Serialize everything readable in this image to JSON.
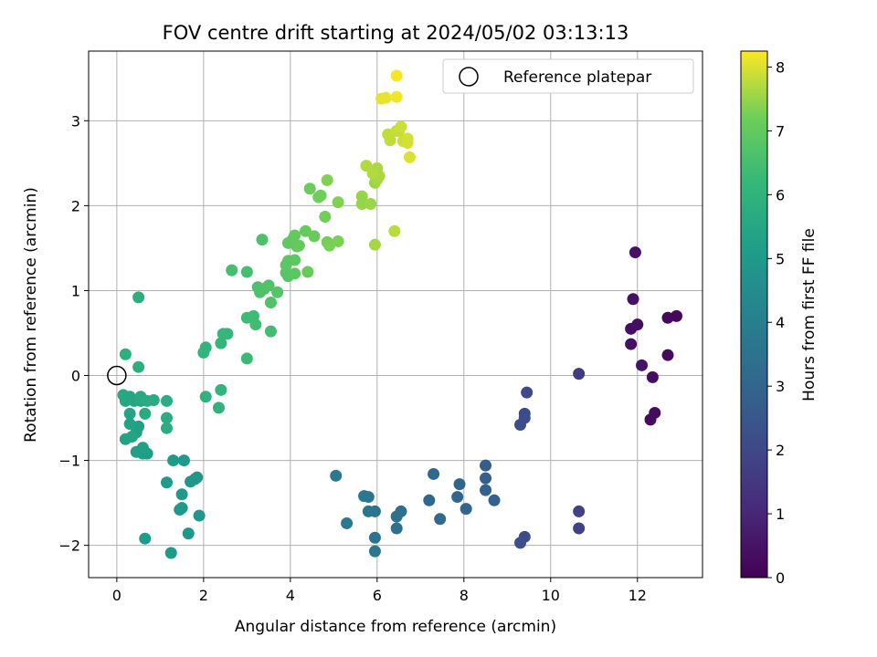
{
  "chart_data": {
    "type": "scatter",
    "title": "FOV centre drift starting at 2024/05/02 03:13:13",
    "xlabel": "Angular distance from reference (arcmin)",
    "ylabel": "Rotation from reference (arcmin)",
    "xlim": [
      -0.65,
      13.5
    ],
    "ylim": [
      -2.38,
      3.82
    ],
    "xticks": [
      0,
      2,
      4,
      6,
      8,
      10,
      12
    ],
    "yticks": [
      -2,
      -1,
      0,
      1,
      2,
      3
    ],
    "grid": true,
    "legend": {
      "position": "top-right",
      "entries": [
        "Reference platepar"
      ]
    },
    "reference_point": {
      "x": 0,
      "y": 0
    },
    "colorbar": {
      "label": "Hours from first FF file",
      "min": 0,
      "max": 8.25,
      "ticks": [
        0,
        1,
        2,
        3,
        4,
        5,
        6,
        7,
        8
      ],
      "colormap": "viridis"
    },
    "points": [
      [
        12.7,
        0.68,
        0.2
      ],
      [
        12.9,
        0.7,
        0.2
      ],
      [
        12.7,
        0.24,
        0.3
      ],
      [
        12.4,
        -0.44,
        0.3
      ],
      [
        12.3,
        -0.52,
        0.3
      ],
      [
        12.35,
        -0.02,
        0.35
      ],
      [
        12.0,
        0.6,
        0.35
      ],
      [
        11.85,
        0.55,
        0.4
      ],
      [
        11.85,
        0.37,
        0.4
      ],
      [
        11.9,
        0.9,
        0.45
      ],
      [
        11.95,
        1.45,
        0.45
      ],
      [
        12.1,
        0.12,
        0.5
      ],
      [
        10.65,
        0.02,
        1.6
      ],
      [
        10.65,
        -1.6,
        1.75
      ],
      [
        10.65,
        -1.8,
        1.8
      ],
      [
        9.45,
        -0.2,
        2.05
      ],
      [
        9.4,
        -0.45,
        2.1
      ],
      [
        9.4,
        -0.5,
        2.15
      ],
      [
        9.3,
        -0.58,
        2.2
      ],
      [
        9.4,
        -1.9,
        2.2
      ],
      [
        9.3,
        -1.97,
        2.25
      ],
      [
        8.5,
        -1.06,
        2.75
      ],
      [
        8.5,
        -1.21,
        2.8
      ],
      [
        8.5,
        -1.35,
        2.85
      ],
      [
        8.7,
        -1.47,
        2.85
      ],
      [
        8.05,
        -1.57,
        2.95
      ],
      [
        7.9,
        -1.28,
        3.0
      ],
      [
        7.85,
        -1.43,
        3.0
      ],
      [
        7.3,
        -1.16,
        3.1
      ],
      [
        7.2,
        -1.47,
        3.15
      ],
      [
        7.45,
        -1.69,
        3.2
      ],
      [
        6.55,
        -1.6,
        3.35
      ],
      [
        6.45,
        -1.66,
        3.4
      ],
      [
        6.45,
        -1.8,
        3.4
      ],
      [
        5.95,
        -1.6,
        3.55
      ],
      [
        5.95,
        -1.91,
        3.55
      ],
      [
        5.95,
        -2.07,
        3.6
      ],
      [
        5.8,
        -1.6,
        3.6
      ],
      [
        5.8,
        -1.43,
        3.65
      ],
      [
        5.7,
        -1.42,
        3.7
      ],
      [
        5.3,
        -1.74,
        3.75
      ],
      [
        5.05,
        -1.18,
        3.8
      ],
      [
        1.85,
        -1.2,
        4.8
      ],
      [
        1.8,
        -1.22,
        4.85
      ],
      [
        1.7,
        -1.25,
        4.85
      ],
      [
        1.9,
        -1.65,
        4.9
      ],
      [
        1.65,
        -1.86,
        4.9
      ],
      [
        1.5,
        -1.56,
        4.95
      ],
      [
        1.45,
        -1.58,
        4.95
      ],
      [
        1.5,
        -1.4,
        5.0
      ],
      [
        1.55,
        -1.0,
        5.0
      ],
      [
        1.3,
        -1.0,
        5.05
      ],
      [
        1.15,
        -1.26,
        5.05
      ],
      [
        1.25,
        -2.09,
        5.1
      ],
      [
        0.65,
        -1.92,
        5.1
      ],
      [
        0.7,
        -0.92,
        5.2
      ],
      [
        0.6,
        -0.92,
        5.2
      ],
      [
        0.6,
        -0.85,
        5.25
      ],
      [
        0.45,
        -0.9,
        5.25
      ],
      [
        0.45,
        -0.67,
        5.3
      ],
      [
        0.5,
        -0.6,
        5.3
      ],
      [
        0.3,
        -0.57,
        5.35
      ],
      [
        0.2,
        -0.75,
        5.35
      ],
      [
        0.35,
        -0.72,
        5.4
      ],
      [
        0.3,
        -0.45,
        5.4
      ],
      [
        0.4,
        -0.3,
        5.45
      ],
      [
        0.3,
        -0.25,
        5.5
      ],
      [
        0.2,
        -0.3,
        5.5
      ],
      [
        0.15,
        -0.23,
        5.55
      ],
      [
        0.55,
        -0.25,
        5.6
      ],
      [
        0.55,
        -0.3,
        5.6
      ],
      [
        0.65,
        -0.45,
        5.65
      ],
      [
        0.85,
        -0.29,
        5.65
      ],
      [
        0.7,
        -0.3,
        5.7
      ],
      [
        1.15,
        -0.3,
        5.7
      ],
      [
        1.15,
        -0.5,
        5.75
      ],
      [
        1.15,
        -0.62,
        5.75
      ],
      [
        0.5,
        0.92,
        5.8
      ],
      [
        0.5,
        0.1,
        5.8
      ],
      [
        0.2,
        0.25,
        5.85
      ],
      [
        2.05,
        -0.25,
        6.0
      ],
      [
        2.35,
        -0.38,
        6.0
      ],
      [
        2.4,
        -0.17,
        6.05
      ],
      [
        2.0,
        0.27,
        6.1
      ],
      [
        2.05,
        0.33,
        6.1
      ],
      [
        2.4,
        0.38,
        6.15
      ],
      [
        2.45,
        0.49,
        6.2
      ],
      [
        2.55,
        0.49,
        6.2
      ],
      [
        3.0,
        0.2,
        6.3
      ],
      [
        3.0,
        0.68,
        6.35
      ],
      [
        3.15,
        0.7,
        6.35
      ],
      [
        3.2,
        0.6,
        6.4
      ],
      [
        3.55,
        0.52,
        6.4
      ],
      [
        2.65,
        1.24,
        6.5
      ],
      [
        3.0,
        1.22,
        6.5
      ],
      [
        3.35,
        1.6,
        6.6
      ],
      [
        3.25,
        1.04,
        6.6
      ],
      [
        3.3,
        0.98,
        6.65
      ],
      [
        3.4,
        1.02,
        6.65
      ],
      [
        3.5,
        1.06,
        6.7
      ],
      [
        3.55,
        0.86,
        6.7
      ],
      [
        3.7,
        0.98,
        6.75
      ],
      [
        3.9,
        1.21,
        6.8
      ],
      [
        3.95,
        1.17,
        6.8
      ],
      [
        3.9,
        1.3,
        6.85
      ],
      [
        3.95,
        1.35,
        6.85
      ],
      [
        4.1,
        1.2,
        6.9
      ],
      [
        4.1,
        1.36,
        6.9
      ],
      [
        3.95,
        1.56,
        6.95
      ],
      [
        4.15,
        1.52,
        6.95
      ],
      [
        4.05,
        1.6,
        7.0
      ],
      [
        4.1,
        1.65,
        7.0
      ],
      [
        4.2,
        1.53,
        7.05
      ],
      [
        4.35,
        1.7,
        7.05
      ],
      [
        4.4,
        1.22,
        7.1
      ],
      [
        4.55,
        1.64,
        7.1
      ],
      [
        4.45,
        2.2,
        7.15
      ],
      [
        4.65,
        2.1,
        7.2
      ],
      [
        4.7,
        2.12,
        7.2
      ],
      [
        4.8,
        1.87,
        7.25
      ],
      [
        4.85,
        1.57,
        7.25
      ],
      [
        4.9,
        1.53,
        7.3
      ],
      [
        5.1,
        1.58,
        7.3
      ],
      [
        4.85,
        2.3,
        7.35
      ],
      [
        5.1,
        2.04,
        7.35
      ],
      [
        5.65,
        2.11,
        7.5
      ],
      [
        5.65,
        2.02,
        7.5
      ],
      [
        5.85,
        2.02,
        7.55
      ],
      [
        5.95,
        2.27,
        7.55
      ],
      [
        6.0,
        2.31,
        7.6
      ],
      [
        5.95,
        1.54,
        7.6
      ],
      [
        6.05,
        2.35,
        7.65
      ],
      [
        6.0,
        2.44,
        7.65
      ],
      [
        5.75,
        2.47,
        7.7
      ],
      [
        5.9,
        2.38,
        7.7
      ],
      [
        6.4,
        1.7,
        7.75
      ],
      [
        6.25,
        2.84,
        7.8
      ],
      [
        6.3,
        2.77,
        7.8
      ],
      [
        6.45,
        2.88,
        7.85
      ],
      [
        6.5,
        2.88,
        7.85
      ],
      [
        6.55,
        2.93,
        7.9
      ],
      [
        6.6,
        2.76,
        7.9
      ],
      [
        6.7,
        2.79,
        7.95
      ],
      [
        6.7,
        2.74,
        7.95
      ],
      [
        6.75,
        2.57,
        8.0
      ],
      [
        6.1,
        3.26,
        8.1
      ],
      [
        6.2,
        3.27,
        8.1
      ],
      [
        6.45,
        3.28,
        8.15
      ],
      [
        6.45,
        3.53,
        8.2
      ]
    ]
  }
}
